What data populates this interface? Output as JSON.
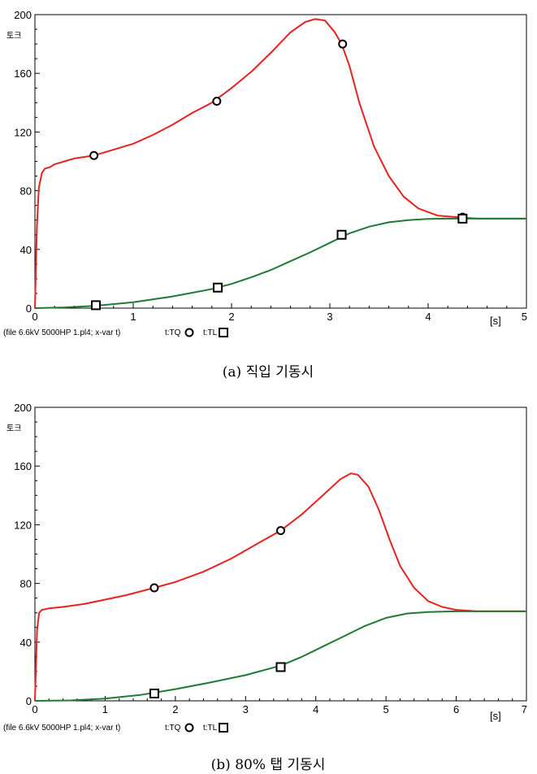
{
  "chart_data": [
    {
      "type": "line",
      "title": "",
      "ylabel": "토크",
      "xunit": "[s]",
      "xlim": [
        0,
        5
      ],
      "ylim": [
        0,
        200
      ],
      "xticks": [
        "0",
        "1",
        "2",
        "3",
        "4",
        "5"
      ],
      "yticks": [
        "0",
        "40",
        "80",
        "120",
        "160",
        "200"
      ],
      "footer": "(file 6.6kV 5000HP 1.pl4; x-var t)",
      "caption": "(a) 직입 기동시",
      "series": [
        {
          "name": "t:TQ",
          "color": "#e8231f",
          "marker": "circle",
          "x": [
            0,
            0.02,
            0.04,
            0.07,
            0.1,
            0.15,
            0.2,
            0.3,
            0.4,
            0.5,
            0.6,
            0.8,
            1.0,
            1.2,
            1.4,
            1.6,
            1.8,
            2.0,
            2.2,
            2.4,
            2.6,
            2.75,
            2.85,
            2.95,
            3.05,
            3.12,
            3.2,
            3.3,
            3.45,
            3.6,
            3.75,
            3.9,
            4.1,
            4.3,
            4.5,
            4.8,
            5.0
          ],
          "y": [
            0,
            55,
            82,
            92,
            95,
            96,
            98,
            100,
            102,
            103,
            104,
            108,
            112,
            118,
            125,
            133,
            140,
            150,
            161,
            174,
            188,
            195,
            197,
            196,
            188,
            180,
            165,
            140,
            110,
            90,
            76,
            68,
            63,
            62,
            61,
            61,
            61
          ],
          "markers_x": [
            0.6,
            1.85,
            3.13,
            4.35
          ],
          "markers_y": [
            104,
            141,
            180,
            62
          ]
        },
        {
          "name": "t:TL",
          "color": "#1f7a33",
          "marker": "square",
          "x": [
            0,
            0.3,
            0.6,
            1.0,
            1.4,
            1.8,
            2.0,
            2.2,
            2.4,
            2.6,
            2.8,
            3.0,
            3.2,
            3.4,
            3.6,
            3.8,
            4.0,
            4.2,
            4.4,
            4.6,
            5.0
          ],
          "y": [
            0,
            0.5,
            1.5,
            4,
            8,
            13,
            16.5,
            21,
            26,
            32,
            38,
            44.5,
            51,
            55.5,
            58.5,
            60,
            60.8,
            61,
            61,
            61,
            61
          ],
          "markers_x": [
            0.62,
            1.86,
            3.12,
            4.35
          ],
          "markers_y": [
            2,
            14,
            50,
            61
          ]
        }
      ]
    },
    {
      "type": "line",
      "title": "",
      "ylabel": "토크",
      "xunit": "[s]",
      "xlim": [
        0,
        7
      ],
      "ylim": [
        0,
        200
      ],
      "xticks": [
        "0",
        "1",
        "2",
        "3",
        "4",
        "5",
        "6",
        "7"
      ],
      "yticks": [
        "0",
        "40",
        "80",
        "120",
        "160",
        "200"
      ],
      "footer": "(file 6.6kV 5000HP 1.pl4; x-var t)",
      "caption": "(b) 80% 탭 기동시",
      "series": [
        {
          "name": "t:TQ",
          "color": "#e8231f",
          "marker": "circle",
          "x": [
            0,
            0.03,
            0.06,
            0.1,
            0.2,
            0.4,
            0.7,
            1.0,
            1.3,
            1.7,
            2.0,
            2.4,
            2.8,
            3.2,
            3.5,
            3.8,
            4.1,
            4.35,
            4.5,
            4.6,
            4.75,
            4.9,
            5.05,
            5.2,
            5.4,
            5.6,
            5.8,
            6.0,
            6.3,
            6.6,
            7.0
          ],
          "y": [
            0,
            48,
            60,
            62,
            63,
            64,
            66,
            69,
            72,
            77,
            81,
            88,
            97,
            108,
            116,
            127,
            140,
            151,
            155,
            154,
            146,
            130,
            110,
            92,
            77,
            68,
            64,
            62,
            61,
            61,
            61
          ],
          "markers_x": [
            1.7,
            3.5
          ],
          "markers_y": [
            77,
            116
          ]
        },
        {
          "name": "t:TL",
          "color": "#1f7a33",
          "marker": "square",
          "x": [
            0,
            0.5,
            1.0,
            1.5,
            2.0,
            2.5,
            3.0,
            3.5,
            3.8,
            4.1,
            4.4,
            4.7,
            5.0,
            5.3,
            5.6,
            6.0,
            6.5,
            7.0
          ],
          "y": [
            0,
            0.3,
            1.5,
            4,
            8,
            12.5,
            17.5,
            24,
            30,
            37,
            44,
            51,
            56.5,
            59.5,
            60.5,
            61,
            61,
            61
          ],
          "markers_x": [
            1.7,
            3.5
          ],
          "markers_y": [
            5,
            23
          ]
        }
      ]
    }
  ]
}
